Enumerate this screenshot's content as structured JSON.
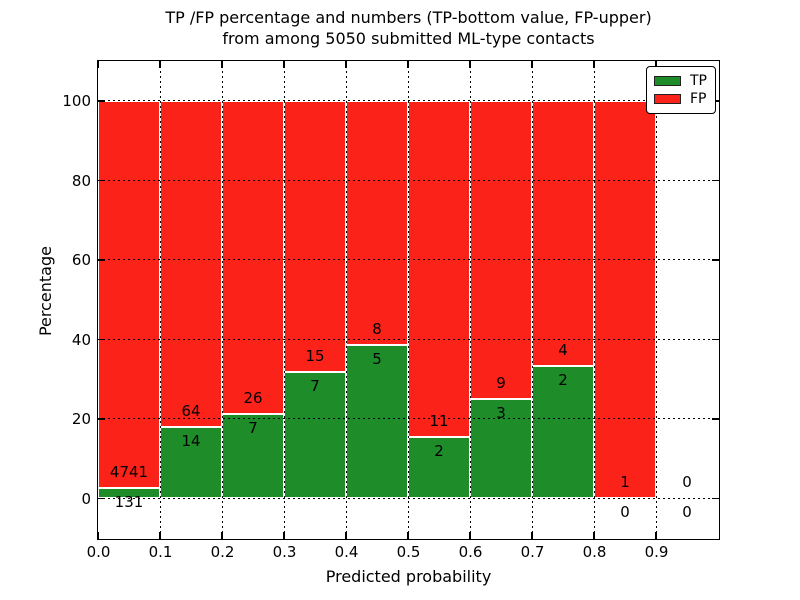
{
  "title": {
    "line1": "TP /FP percentage and numbers (TP-bottom value, FP-upper)",
    "line2": "from among 5050 submitted ML-type contacts"
  },
  "axes": {
    "xlabel": "Predicted probability",
    "ylabel": "Percentage",
    "xlim": [
      0.0,
      1.0
    ],
    "ylim": [
      -10,
      110
    ],
    "xticks": [
      {
        "value": 0.0,
        "label": "0.0"
      },
      {
        "value": 0.1,
        "label": "0.1"
      },
      {
        "value": 0.2,
        "label": "0.2"
      },
      {
        "value": 0.3,
        "label": "0.3"
      },
      {
        "value": 0.4,
        "label": "0.4"
      },
      {
        "value": 0.5,
        "label": "0.5"
      },
      {
        "value": 0.6,
        "label": "0.6"
      },
      {
        "value": 0.7,
        "label": "0.7"
      },
      {
        "value": 0.8,
        "label": "0.8"
      },
      {
        "value": 0.9,
        "label": "0.9"
      }
    ],
    "yticks": [
      {
        "value": 0,
        "label": "0"
      },
      {
        "value": 20,
        "label": "20"
      },
      {
        "value": 40,
        "label": "40"
      },
      {
        "value": 60,
        "label": "60"
      },
      {
        "value": 80,
        "label": "80"
      },
      {
        "value": 100,
        "label": "100"
      }
    ],
    "grid_style": "black dotted, drawn over bars"
  },
  "legend": {
    "position": "upper right",
    "entries": [
      {
        "label": "TP",
        "color": "#1e8c28"
      },
      {
        "label": "FP",
        "color": "#fb2319"
      }
    ]
  },
  "chart_data": {
    "type": "bar",
    "stacked": true,
    "orientation": "vertical",
    "normalized_to_percent": true,
    "title": "TP /FP percentage and numbers (TP-bottom value, FP-upper) from among 5050 submitted ML-type contacts",
    "xlabel": "Predicted probability",
    "ylabel": "Percentage",
    "bin_width": 0.1,
    "bin_starts": [
      0.0,
      0.1,
      0.2,
      0.3,
      0.4,
      0.5,
      0.6,
      0.7,
      0.8,
      0.9
    ],
    "series": [
      {
        "name": "TP",
        "color": "#1e8c28",
        "counts": [
          131,
          14,
          7,
          7,
          5,
          2,
          3,
          2,
          0,
          0
        ]
      },
      {
        "name": "FP",
        "color": "#fb2319",
        "counts": [
          4741,
          64,
          26,
          15,
          8,
          11,
          9,
          4,
          1,
          0
        ]
      }
    ],
    "total_contacts": 5050,
    "bar_edge_color": "#ffffff",
    "label_note": "FP count printed just above TP segment top, TP count just below it"
  }
}
